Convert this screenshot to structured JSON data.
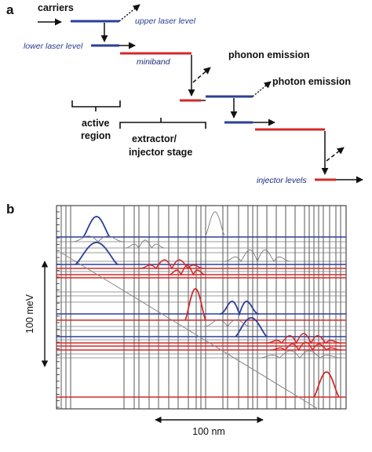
{
  "panel_a": {
    "letter": "a",
    "labels": {
      "carriers": "carriers",
      "upper_laser_level": "upper laser level",
      "lower_laser_level": "lower laser level",
      "miniband": "miniband",
      "phonon_emission": "phonon emission",
      "photon_emission": "photon emission",
      "active_region_line1": "active",
      "active_region_line2": "region",
      "extractor_line1": "extractor/",
      "extractor_line2": "injector stage",
      "injector_levels": "injector levels"
    },
    "colors": {
      "upper": "#2b3f9a",
      "lower": "#d42a2a",
      "arrow": "#111111"
    }
  },
  "panel_b": {
    "letter": "b",
    "y_scale_label": "100 meV",
    "x_scale_label": "100 nm",
    "colors": {
      "blue": "#2b3f9a",
      "red": "#d42a2a",
      "grey": "#7a7a7a",
      "frame": "#222222"
    }
  }
}
